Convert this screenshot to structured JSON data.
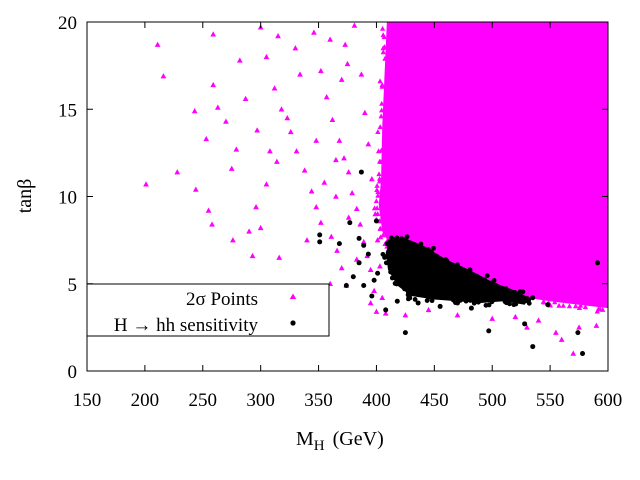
{
  "chart_data": {
    "type": "scatter",
    "xlabel": "M",
    "xlabel_sub": "H",
    "xlabel_unit": "(GeV)",
    "ylabel": "tanβ",
    "xlim": [
      150,
      600
    ],
    "ylim": [
      0,
      20
    ],
    "x_ticks": [
      "150",
      "200",
      "250",
      "300",
      "350",
      "400",
      "450",
      "500",
      "550",
      "600"
    ],
    "y_ticks": [
      "0",
      "5",
      "10",
      "15",
      "20"
    ],
    "legend_placement": "bottom-left",
    "series": [
      {
        "name": "2σ Points",
        "marker": "triangle",
        "color": "#ff00ff",
        "dense_region": {
          "band_edge": [
            [
              409,
              20
            ],
            [
              407,
              17
            ],
            [
              405,
              14
            ],
            [
              404,
              11
            ],
            [
              402,
              9.5
            ],
            [
              405,
              8
            ],
            [
              414,
              7.0
            ],
            [
              430,
              6.0
            ],
            [
              460,
              5.3
            ],
            [
              490,
              4.7
            ],
            [
              520,
              4.3
            ],
            [
              550,
              4.0
            ],
            [
              575,
              3.8
            ],
            [
              600,
              3.6
            ]
          ]
        },
        "points": [
          [
            211,
            18.7
          ],
          [
            216,
            16.9
          ],
          [
            228,
            11.4
          ],
          [
            201,
            10.7
          ],
          [
            259,
            19.3
          ],
          [
            259,
            16.4
          ],
          [
            263,
            15.1
          ],
          [
            253,
            13.3
          ],
          [
            270,
            14.3
          ],
          [
            279,
            12.7
          ],
          [
            255,
            9.2
          ],
          [
            258,
            8.4
          ],
          [
            276,
            7.5
          ],
          [
            290,
            8.0
          ],
          [
            293,
            6.6
          ],
          [
            296,
            9.4
          ],
          [
            282,
            17.8
          ],
          [
            305,
            18.0
          ],
          [
            312,
            16.2
          ],
          [
            318,
            15.0
          ],
          [
            326,
            13.7
          ],
          [
            331,
            12.6
          ],
          [
            338,
            11.5
          ],
          [
            344,
            10.3
          ],
          [
            348,
            9.4
          ],
          [
            352,
            8.5
          ],
          [
            361,
            7.7
          ],
          [
            366,
            6.9
          ],
          [
            370,
            5.9
          ],
          [
            374,
            4.9
          ],
          [
            346,
            19.4
          ],
          [
            352,
            17.2
          ],
          [
            357,
            15.7
          ],
          [
            362,
            14.4
          ],
          [
            368,
            13.2
          ],
          [
            372,
            12.2
          ],
          [
            376,
            11.4
          ],
          [
            379,
            10.2
          ],
          [
            383,
            9.3
          ],
          [
            386,
            8.4
          ],
          [
            389,
            7.4
          ],
          [
            392,
            6.6
          ],
          [
            395,
            5.8
          ],
          [
            398,
            4.6
          ],
          [
            334,
            17.0
          ],
          [
            323,
            14.5
          ],
          [
            314,
            12.0
          ],
          [
            305,
            10.7
          ],
          [
            300,
            8.2
          ],
          [
            316,
            6.5
          ],
          [
            340,
            7.5
          ],
          [
            355,
            10.8
          ],
          [
            365,
            12.1
          ],
          [
            370,
            16.7
          ],
          [
            373,
            18.7
          ],
          [
            381,
            19.8
          ],
          [
            387,
            17.0
          ],
          [
            390,
            14.8
          ],
          [
            393,
            13.0
          ],
          [
            396,
            11.0
          ],
          [
            399,
            9.0
          ],
          [
            401,
            7.5
          ],
          [
            403,
            6.0
          ],
          [
            405,
            4.2
          ],
          [
            408,
            3.3
          ],
          [
            287,
            15.6
          ],
          [
            297,
            13.8
          ],
          [
            308,
            12.6
          ],
          [
            244,
            10.4
          ],
          [
            243,
            14.9
          ],
          [
            275,
            11.6
          ],
          [
            300,
            19.7
          ],
          [
            315,
            19.2
          ],
          [
            330,
            18.5
          ],
          [
            360,
            19.0
          ],
          [
            375,
            17.6
          ],
          [
            365,
            10.0
          ],
          [
            348,
            13.2
          ],
          [
            376,
            8.8
          ],
          [
            383,
            6.4
          ],
          [
            360,
            5.0
          ],
          [
            395,
            3.9
          ],
          [
            400,
            3.4
          ],
          [
            425,
            3.2
          ],
          [
            445,
            3.5
          ],
          [
            470,
            3.2
          ],
          [
            500,
            3.0
          ],
          [
            520,
            3.1
          ],
          [
            540,
            2.9
          ],
          [
            560,
            1.8
          ],
          [
            570,
            1.0
          ],
          [
            575,
            2.5
          ],
          [
            590,
            2.6
          ],
          [
            555,
            2.2
          ],
          [
            530,
            2.5
          ]
        ]
      },
      {
        "name": "H → hh sensitivity",
        "marker": "circle",
        "color": "#000000",
        "dense_region": {
          "polygon": [
            [
              412,
              7.5
            ],
            [
              425,
              7.6
            ],
            [
              440,
              7.2
            ],
            [
              460,
              6.4
            ],
            [
              480,
              5.8
            ],
            [
              500,
              5.1
            ],
            [
              520,
              4.6
            ],
            [
              532,
              4.2
            ],
            [
              528,
              3.8
            ],
            [
              510,
              4.0
            ],
            [
              490,
              3.9
            ],
            [
              470,
              4.0
            ],
            [
              450,
              4.1
            ],
            [
              430,
              4.3
            ],
            [
              418,
              4.9
            ],
            [
              410,
              5.8
            ],
            [
              408,
              6.8
            ]
          ]
        },
        "points": [
          [
            387,
            11.4
          ],
          [
            377,
            8.5
          ],
          [
            400,
            8.6
          ],
          [
            385,
            7.6
          ],
          [
            389,
            7.2
          ],
          [
            351,
            7.8
          ],
          [
            351,
            7.4
          ],
          [
            368,
            7.3
          ],
          [
            393,
            6.7
          ],
          [
            385,
            6.2
          ],
          [
            401,
            5.6
          ],
          [
            380,
            5.4
          ],
          [
            398,
            5.2
          ],
          [
            374,
            4.9
          ],
          [
            389,
            4.9
          ],
          [
            396,
            4.3
          ],
          [
            408,
            3.5
          ],
          [
            425,
            2.2
          ],
          [
            497,
            2.3
          ],
          [
            528,
            2.7
          ],
          [
            535,
            1.4
          ],
          [
            574,
            2.2
          ],
          [
            578,
            1.0
          ],
          [
            591,
            6.2
          ],
          [
            548,
            3.8
          ],
          [
            535,
            4.2
          ],
          [
            418,
            4.0
          ],
          [
            436,
            3.9
          ],
          [
            455,
            3.7
          ],
          [
            470,
            3.9
          ],
          [
            482,
            3.6
          ]
        ]
      }
    ]
  }
}
